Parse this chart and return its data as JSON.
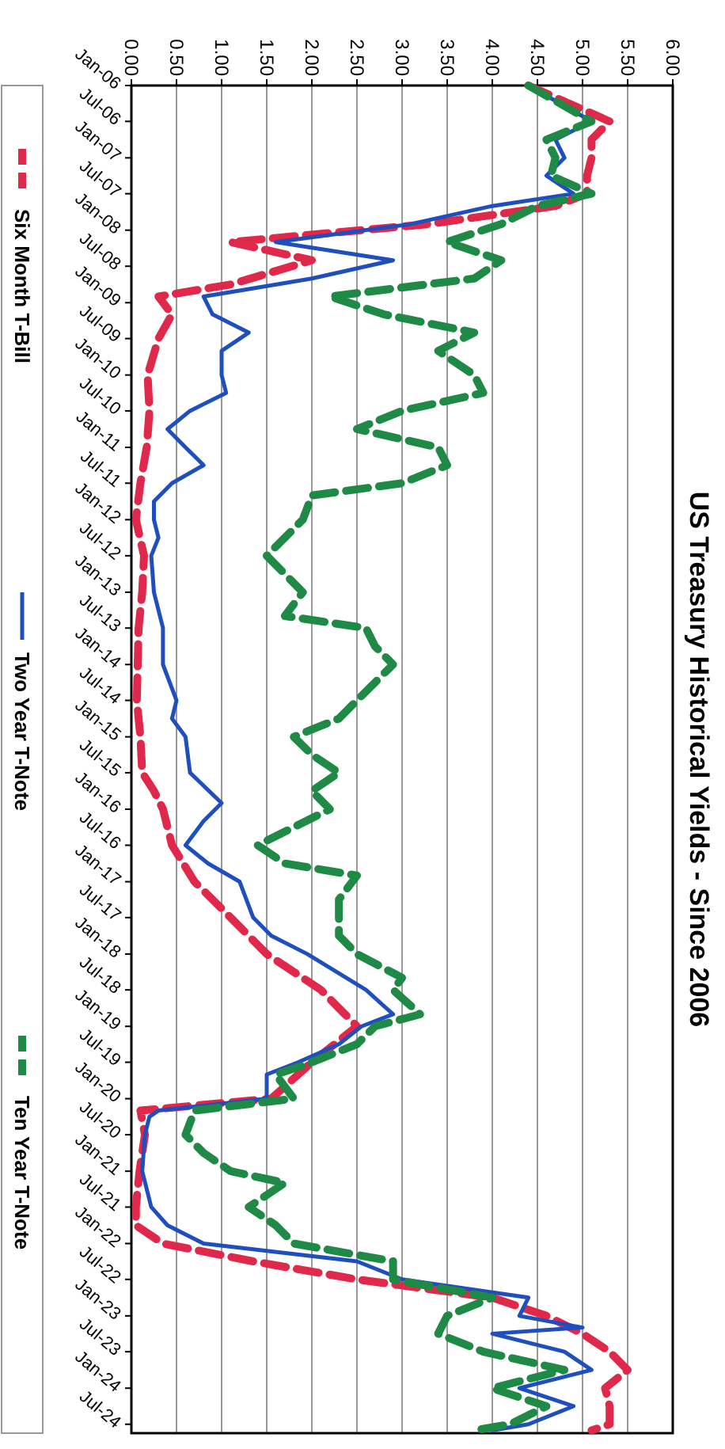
{
  "chart_data": {
    "type": "line",
    "title": "US Treasury Historical Yields - Since 2006",
    "orientation": "horizontal",
    "ylim": [
      "2024-08-15",
      "2006-01-01"
    ],
    "yticks": [
      {
        "value": "2006-01",
        "label": "Jan-06"
      },
      {
        "value": "2006-07",
        "label": "Jul-06"
      },
      {
        "value": "2007-01",
        "label": "Jan-07"
      },
      {
        "value": "2007-07",
        "label": "Jul-07"
      },
      {
        "value": "2008-01",
        "label": "Jan-08"
      },
      {
        "value": "2008-07",
        "label": "Jul-08"
      },
      {
        "value": "2009-01",
        "label": "Jan-09"
      },
      {
        "value": "2009-07",
        "label": "Jul-09"
      },
      {
        "value": "2010-01",
        "label": "Jan-10"
      },
      {
        "value": "2010-07",
        "label": "Jul-10"
      },
      {
        "value": "2011-01",
        "label": "Jan-11"
      },
      {
        "value": "2011-07",
        "label": "Jul-11"
      },
      {
        "value": "2012-01",
        "label": "Jan-12"
      },
      {
        "value": "2012-07",
        "label": "Jul-12"
      },
      {
        "value": "2013-01",
        "label": "Jan-13"
      },
      {
        "value": "2013-07",
        "label": "Jul-13"
      },
      {
        "value": "2014-01",
        "label": "Jan-14"
      },
      {
        "value": "2014-07",
        "label": "Jul-14"
      },
      {
        "value": "2015-01",
        "label": "Jan-15"
      },
      {
        "value": "2015-07",
        "label": "Jul-15"
      },
      {
        "value": "2016-01",
        "label": "Jan-16"
      },
      {
        "value": "2016-07",
        "label": "Jul-16"
      },
      {
        "value": "2017-01",
        "label": "Jan-17"
      },
      {
        "value": "2017-07",
        "label": "Jul-17"
      },
      {
        "value": "2018-01",
        "label": "Jan-18"
      },
      {
        "value": "2018-07",
        "label": "Jul-18"
      },
      {
        "value": "2019-01",
        "label": "Jan-19"
      },
      {
        "value": "2019-07",
        "label": "Jul-19"
      },
      {
        "value": "2020-01",
        "label": "Jan-20"
      },
      {
        "value": "2020-07",
        "label": "Jul-20"
      },
      {
        "value": "2021-01",
        "label": "Jan-21"
      },
      {
        "value": "2021-07",
        "label": "Jul-21"
      },
      {
        "value": "2022-01",
        "label": "Jan-22"
      },
      {
        "value": "2022-07",
        "label": "Jul-22"
      },
      {
        "value": "2023-01",
        "label": "Jan-23"
      },
      {
        "value": "2023-07",
        "label": "Jul-23"
      },
      {
        "value": "2024-01",
        "label": "Jan-24"
      },
      {
        "value": "2024-07",
        "label": "Jul-24"
      }
    ],
    "xlim": [
      0,
      6
    ],
    "xticks": [
      {
        "value": 0,
        "label": "0.00"
      },
      {
        "value": 0.5,
        "label": "0.50"
      },
      {
        "value": 1,
        "label": "1.00"
      },
      {
        "value": 1.5,
        "label": "1.50"
      },
      {
        "value": 2,
        "label": "2.00"
      },
      {
        "value": 2.5,
        "label": "2.50"
      },
      {
        "value": 3,
        "label": "3.00"
      },
      {
        "value": 3.5,
        "label": "3.50"
      },
      {
        "value": 4,
        "label": "4.00"
      },
      {
        "value": 4.5,
        "label": "4.50"
      },
      {
        "value": 5,
        "label": "5.00"
      },
      {
        "value": 5.5,
        "label": "5.50"
      },
      {
        "value": 6,
        "label": "6.00"
      }
    ],
    "grid": "x",
    "legend": "left",
    "marker": "none",
    "series": [
      {
        "name": "Six Month T-Bill",
        "color": "#e0284a",
        "line_style": "dashed",
        "x": [
          "2006-01",
          "2006-07",
          "2006-10",
          "2007-01",
          "2007-04",
          "2007-07",
          "2007-09",
          "2007-12",
          "2008-03",
          "2008-06",
          "2008-10",
          "2008-12",
          "2009-03",
          "2009-07",
          "2010-01",
          "2010-07",
          "2011-01",
          "2011-07",
          "2012-01",
          "2012-07",
          "2013-01",
          "2013-07",
          "2014-01",
          "2014-07",
          "2015-01",
          "2015-07",
          "2015-10",
          "2016-01",
          "2016-07",
          "2017-01",
          "2017-07",
          "2018-01",
          "2018-07",
          "2019-01",
          "2019-07",
          "2020-01",
          "2020-03",
          "2020-07",
          "2021-01",
          "2021-07",
          "2021-10",
          "2022-01",
          "2022-04",
          "2022-07",
          "2022-10",
          "2023-01",
          "2023-04",
          "2023-07",
          "2023-10",
          "2024-01",
          "2024-04",
          "2024-07",
          "2024-08"
        ],
        "values": [
          4.4,
          5.3,
          5.1,
          5.1,
          5.05,
          5.05,
          4.7,
          3.3,
          1.1,
          2.0,
          1.1,
          0.3,
          0.45,
          0.3,
          0.18,
          0.2,
          0.17,
          0.1,
          0.05,
          0.14,
          0.12,
          0.08,
          0.07,
          0.06,
          0.1,
          0.12,
          0.25,
          0.35,
          0.45,
          0.7,
          1.1,
          1.5,
          2.1,
          2.5,
          2.0,
          1.55,
          0.1,
          0.15,
          0.09,
          0.05,
          0.05,
          0.35,
          1.35,
          2.5,
          4.0,
          4.6,
          5.0,
          5.3,
          5.5,
          5.25,
          5.3,
          5.3,
          5.1
        ]
      },
      {
        "name": "Two Year T-Note",
        "color": "#1f4fbf",
        "line_style": "solid",
        "x": [
          "2006-01",
          "2006-07",
          "2006-10",
          "2007-01",
          "2007-04",
          "2007-07",
          "2007-09",
          "2007-12",
          "2008-03",
          "2008-06",
          "2008-09",
          "2008-11",
          "2008-12",
          "2009-03",
          "2009-06",
          "2009-09",
          "2010-01",
          "2010-04",
          "2010-07",
          "2010-10",
          "2011-01",
          "2011-04",
          "2011-07",
          "2011-10",
          "2012-01",
          "2012-04",
          "2012-07",
          "2013-01",
          "2013-07",
          "2014-01",
          "2014-07",
          "2014-10",
          "2015-01",
          "2015-07",
          "2015-12",
          "2016-03",
          "2016-07",
          "2016-10",
          "2017-01",
          "2017-07",
          "2017-10",
          "2018-01",
          "2018-07",
          "2018-11",
          "2019-01",
          "2019-04",
          "2019-07",
          "2019-09",
          "2020-01",
          "2020-03",
          "2020-04",
          "2020-07",
          "2021-01",
          "2021-07",
          "2021-10",
          "2022-01",
          "2022-04",
          "2022-07",
          "2022-10",
          "2023-01",
          "2023-03",
          "2023-04",
          "2023-07",
          "2023-10",
          "2024-01",
          "2024-04",
          "2024-07",
          "2024-08"
        ],
        "values": [
          4.4,
          5.1,
          4.7,
          4.8,
          4.6,
          4.9,
          4.0,
          3.1,
          1.6,
          2.9,
          2.0,
          1.2,
          0.8,
          0.9,
          1.3,
          1.0,
          1.0,
          1.05,
          0.65,
          0.4,
          0.6,
          0.8,
          0.45,
          0.25,
          0.25,
          0.3,
          0.22,
          0.25,
          0.35,
          0.35,
          0.5,
          0.45,
          0.6,
          0.65,
          1.0,
          0.8,
          0.6,
          0.85,
          1.2,
          1.35,
          1.55,
          1.95,
          2.6,
          2.9,
          2.55,
          2.3,
          1.85,
          1.5,
          1.5,
          0.3,
          0.2,
          0.15,
          0.12,
          0.22,
          0.4,
          0.8,
          2.5,
          3.0,
          4.4,
          4.3,
          5.0,
          4.0,
          4.8,
          5.1,
          4.3,
          4.9,
          4.4,
          4.0
        ]
      },
      {
        "name": "Ten Year T-Note",
        "color": "#1e8a45",
        "line_style": "dashed",
        "x": [
          "2006-01",
          "2006-07",
          "2006-10",
          "2007-01",
          "2007-04",
          "2007-07",
          "2007-09",
          "2007-12",
          "2008-03",
          "2008-06",
          "2008-09",
          "2008-12",
          "2009-03",
          "2009-06",
          "2009-09",
          "2010-01",
          "2010-04",
          "2010-07",
          "2010-10",
          "2011-01",
          "2011-04",
          "2011-07",
          "2011-09",
          "2012-01",
          "2012-07",
          "2012-10",
          "2013-01",
          "2013-05",
          "2013-07",
          "2013-10",
          "2014-01",
          "2014-07",
          "2014-10",
          "2015-01",
          "2015-04",
          "2015-07",
          "2015-10",
          "2016-01",
          "2016-07",
          "2016-10",
          "2016-12",
          "2017-04",
          "2017-07",
          "2017-10",
          "2018-01",
          "2018-05",
          "2018-07",
          "2018-11",
          "2019-01",
          "2019-04",
          "2019-07",
          "2019-09",
          "2020-01",
          "2020-03",
          "2020-07",
          "2020-10",
          "2021-01",
          "2021-03",
          "2021-07",
          "2021-10",
          "2022-01",
          "2022-04",
          "2022-07",
          "2022-10",
          "2023-01",
          "2023-04",
          "2023-07",
          "2023-10",
          "2024-01",
          "2024-04",
          "2024-07",
          "2024-08"
        ],
        "values": [
          4.4,
          5.1,
          4.6,
          4.7,
          4.65,
          5.1,
          4.5,
          4.1,
          3.5,
          4.1,
          3.8,
          2.2,
          2.8,
          3.8,
          3.4,
          3.8,
          3.9,
          3.0,
          2.5,
          3.4,
          3.5,
          3.0,
          2.0,
          1.9,
          1.5,
          1.7,
          1.9,
          1.7,
          2.6,
          2.7,
          2.9,
          2.5,
          2.3,
          1.8,
          2.0,
          2.3,
          2.0,
          2.2,
          1.4,
          1.7,
          2.5,
          2.3,
          2.3,
          2.3,
          2.5,
          3.0,
          2.9,
          3.2,
          2.7,
          2.5,
          2.0,
          1.6,
          1.8,
          0.7,
          0.6,
          0.8,
          1.1,
          1.7,
          1.3,
          1.6,
          1.8,
          2.9,
          2.9,
          4.0,
          3.5,
          3.4,
          3.9,
          4.8,
          4.0,
          4.6,
          4.2,
          3.8
        ]
      }
    ]
  }
}
